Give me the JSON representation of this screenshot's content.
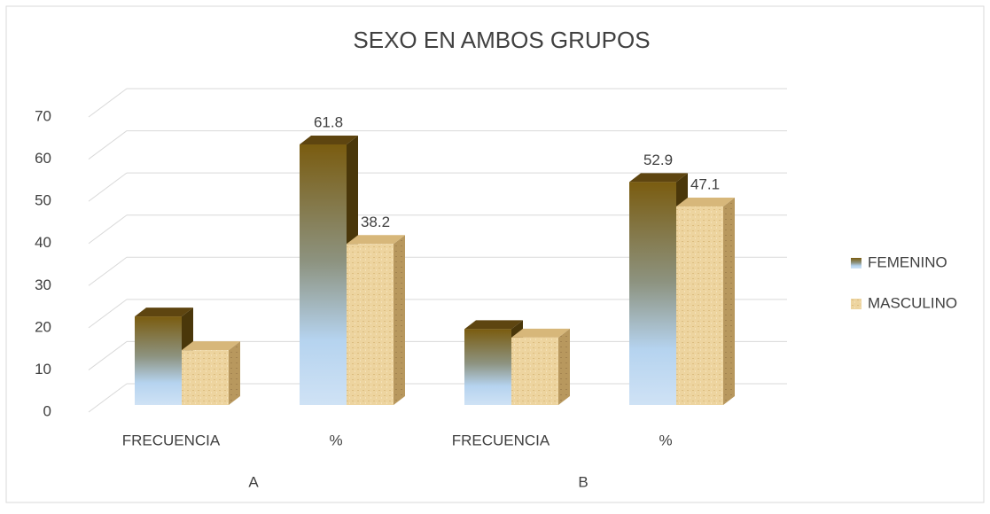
{
  "chart_data": {
    "type": "bar3d",
    "title": "SEXO EN AMBOS GRUPOS",
    "categories": [
      "FRECUENCIA",
      "%",
      "FRECUENCIA",
      "%"
    ],
    "groups": [
      "A",
      "B"
    ],
    "series": [
      {
        "name": "FEMENINO",
        "color": "#7a5c10",
        "values": [
          21,
          61.8,
          18,
          52.9
        ],
        "value_labels": [
          null,
          "61.8",
          null,
          "52.9"
        ]
      },
      {
        "name": "MASCULINO",
        "color": "#e8c98a",
        "values": [
          13,
          38.2,
          16,
          47.1
        ],
        "value_labels": [
          null,
          "38.2",
          null,
          "47.1"
        ]
      }
    ],
    "ylim": [
      0,
      70
    ],
    "yticks": [
      0,
      10,
      20,
      30,
      40,
      50,
      60,
      70
    ],
    "grid": true,
    "legend": "right"
  }
}
